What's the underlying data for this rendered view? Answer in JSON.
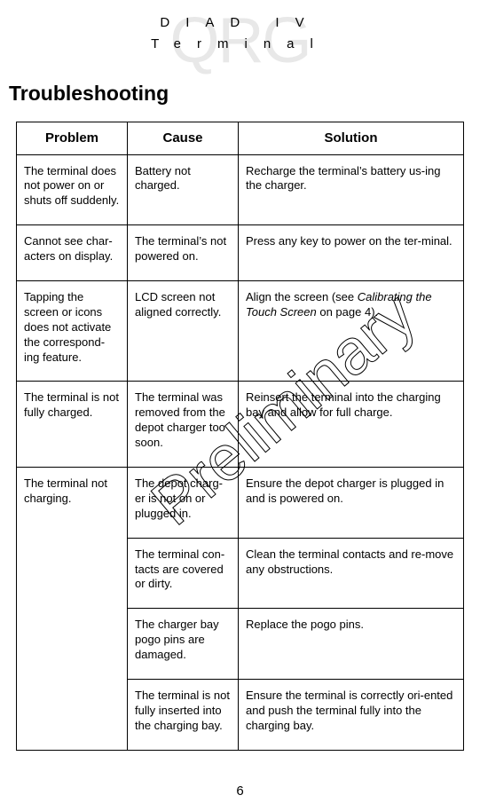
{
  "header": {
    "line1": "DIAD IV",
    "line2": "Terminal"
  },
  "watermarks": {
    "qrg": "QRG",
    "preliminary": "Preliminary"
  },
  "section_title": "Troubleshooting",
  "table": {
    "headers": {
      "problem": "Problem",
      "cause": "Cause",
      "solution": "Solution"
    },
    "rows": [
      {
        "problem": "The terminal does not power on or shuts off suddenly.",
        "cause": "Battery not charged.",
        "solution": "Recharge the terminal’s battery us-ing the charger."
      },
      {
        "problem": "Cannot see char-acters on display.",
        "cause": "The terminal’s not powered on.",
        "solution": "Press any key to power on the ter-minal."
      },
      {
        "problem": "Tapping the screen or icons does not activate the correspond-ing feature.",
        "cause": "LCD screen not aligned correctly.",
        "solution_pre": "Align the screen (see ",
        "solution_italic": "Calibrating the Touch Screen",
        "solution_post": " on page 4)."
      },
      {
        "problem": "The terminal is not fully charged.",
        "cause": "The terminal was removed from the depot charger too soon.",
        "solution": " Reinsert the terminal into the charging bay and allow for full charge."
      },
      {
        "problem": "The terminal not charging.",
        "subrows": [
          {
            "cause": "The depot charg-er is not on or plugged in.",
            "solution": "Ensure the depot charger is plugged in and is powered on."
          },
          {
            "cause": "The terminal con-tacts are covered or dirty.",
            "solution": "Clean the terminal contacts and re-move any obstructions."
          },
          {
            "cause": "The charger bay pogo pins are damaged.",
            "solution": "Replace the pogo pins."
          },
          {
            "cause": "The terminal is not fully inserted into the charging bay.",
            "solution": "Ensure the terminal is correctly ori-ented and push the terminal fully into the charging bay."
          }
        ]
      }
    ]
  },
  "page_number": "6",
  "colors": {
    "watermark_gray": "#e8e8e8",
    "text": "#000000",
    "background": "#ffffff"
  }
}
